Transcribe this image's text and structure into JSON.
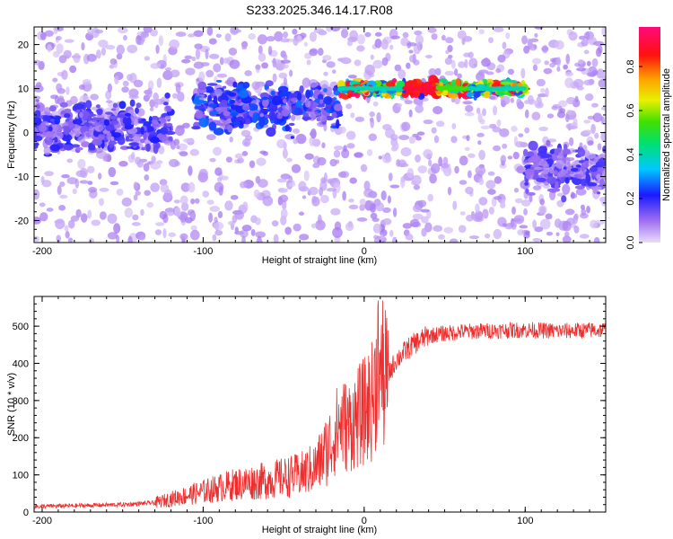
{
  "figure": {
    "title": "S233.2025.346.14.17.R08"
  },
  "colors": {
    "snr_line": "#ee2e2e",
    "axes": "#000000"
  },
  "chart_data": [
    {
      "type": "heatmap",
      "xlabel": "Height of straight line (km)",
      "ylabel": "Frequency (Hz)",
      "xlim": [
        -205,
        150
      ],
      "ylim": [
        -25,
        24
      ],
      "xticks": [
        -200,
        -100,
        0,
        100
      ],
      "yticks": [
        -20,
        -10,
        0,
        10,
        20
      ],
      "colorbar": {
        "label": "Normalized spectral amplitude",
        "range": [
          0,
          0.98
        ],
        "ticks": [
          0.0,
          0.2,
          0.4,
          0.6,
          0.8
        ],
        "colormap": "rainbow (light violet to blue to cyan to green to yellow to red to magenta)"
      },
      "features": [
        {
          "x_range": [
            -205,
            -120
          ],
          "frequency_center": 1,
          "amplitude": 0.2
        },
        {
          "x_range": [
            -105,
            -15
          ],
          "frequency_center": 6,
          "amplitude": 0.25
        },
        {
          "x_range": [
            -15,
            100
          ],
          "frequency_center": 10,
          "amplitude": 0.9,
          "peak_x_range": [
            25,
            45
          ]
        },
        {
          "x_range": [
            100,
            150
          ],
          "frequency_center": -8,
          "amplitude": 0.18
        }
      ]
    },
    {
      "type": "line",
      "xlabel": "Height of straight line (km)",
      "ylabel": "SNR (10 * v/v)",
      "xlim": [
        -205,
        150
      ],
      "ylim": [
        0,
        580
      ],
      "xticks": [
        -200,
        -100,
        0,
        100
      ],
      "yticks": [
        0,
        100,
        200,
        300,
        400,
        500
      ],
      "series": [
        {
          "x": [
            -205,
            -180,
            -150,
            -130,
            -120,
            -100,
            -80,
            -60,
            -40,
            -30,
            -20,
            -15,
            -10,
            -5,
            0,
            5,
            8,
            10,
            12,
            15,
            20,
            30,
            40,
            60,
            80,
            100,
            120,
            150
          ],
          "values": [
            15,
            17,
            20,
            25,
            35,
            55,
            75,
            85,
            100,
            120,
            190,
            240,
            230,
            250,
            270,
            300,
            360,
            420,
            350,
            370,
            410,
            450,
            475,
            485,
            488,
            490,
            487,
            490
          ]
        }
      ]
    }
  ]
}
